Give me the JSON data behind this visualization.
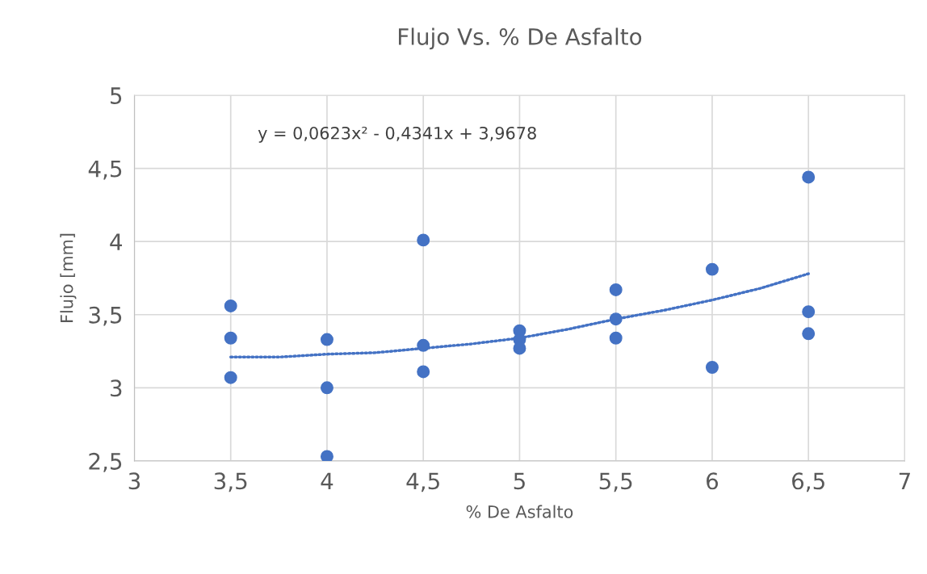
{
  "chart_data": {
    "type": "scatter",
    "title": "Flujo Vs. % De Asfalto",
    "xlabel": "% De Asfalto",
    "ylabel": "Flujo [mm]",
    "annotations": [
      "y = 0,0623x² - 0,4341x + 3,9678"
    ],
    "series": [
      {
        "color": "#4472c4",
        "marker": "circle",
        "x": [
          3.5,
          3.5,
          3.5,
          4,
          4,
          4,
          4.5,
          4.5,
          4.5,
          5,
          5,
          5,
          5.5,
          5.5,
          5.5,
          6,
          6,
          6.5,
          6.5,
          6.5
        ],
        "values": [
          3.56,
          3.34,
          3.07,
          3.33,
          3.0,
          2.53,
          4.01,
          3.29,
          3.11,
          3.39,
          3.33,
          3.27,
          3.67,
          3.47,
          3.34,
          3.81,
          3.14,
          4.44,
          3.52,
          3.37
        ]
      },
      {
        "type": "line",
        "color": "#4472c4",
        "line_style": "dotted",
        "marker": "none",
        "x": [
          3.5,
          3.75,
          4,
          4.25,
          4.5,
          4.75,
          5,
          5.25,
          5.5,
          5.75,
          6,
          6.25,
          6.5
        ],
        "values": [
          3.21,
          3.21,
          3.23,
          3.24,
          3.27,
          3.3,
          3.34,
          3.4,
          3.47,
          3.53,
          3.6,
          3.68,
          3.78
        ]
      }
    ],
    "xlim": [
      3,
      7
    ],
    "xticks": [
      3,
      {
        "value": 3.5,
        "label": "3,5"
      },
      4,
      {
        "value": 4.5,
        "label": "4,5"
      },
      5,
      {
        "value": 5.5,
        "label": "5,5"
      },
      6,
      {
        "value": 6.5,
        "label": "6,5"
      },
      7
    ],
    "ylim": [
      2.5,
      5
    ],
    "yticks": [
      {
        "value": 2.5,
        "label": "2,5"
      },
      3,
      {
        "value": 3.5,
        "label": "3,5"
      },
      4,
      {
        "value": 4.5,
        "label": "4,5"
      },
      5
    ],
    "grid": true,
    "legend": false
  }
}
